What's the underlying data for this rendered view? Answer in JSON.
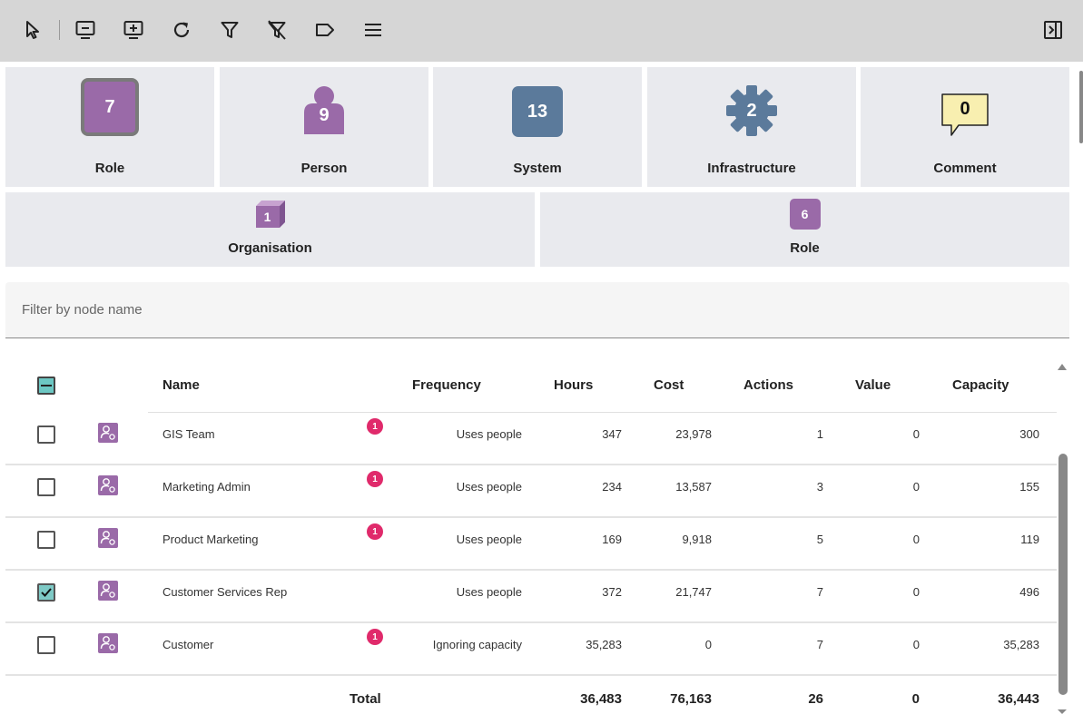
{
  "toolbar": {
    "icons": [
      "pointer-icon",
      "remove-screen-icon",
      "add-screen-icon",
      "refresh-icon",
      "filter-icon",
      "clear-filter-icon",
      "label-icon",
      "menu-icon",
      "side-panel-icon"
    ]
  },
  "tiles": {
    "row1": [
      {
        "label": "Role",
        "count": "7"
      },
      {
        "label": "Person",
        "count": "9"
      },
      {
        "label": "System",
        "count": "13"
      },
      {
        "label": "Infrastructure",
        "count": "2"
      },
      {
        "label": "Comment",
        "count": "0"
      }
    ],
    "row2": [
      {
        "label": "Organisation",
        "count": "1"
      },
      {
        "label": "Role",
        "count": "6"
      }
    ]
  },
  "colors": {
    "role": "#9a6aa8",
    "system": "#5b7a9b",
    "comment": "#f8efb0",
    "badge": "#e02a6b",
    "checkbox": "#7ecac6"
  },
  "filter": {
    "placeholder": "Filter by node name"
  },
  "table": {
    "headers": {
      "name": "Name",
      "frequency": "Frequency",
      "hours": "Hours",
      "cost": "Cost",
      "actions": "Actions",
      "value": "Value",
      "capacity": "Capacity"
    },
    "rows": [
      {
        "name": "GIS Team",
        "badge": "1",
        "frequency": "Uses people",
        "hours": "347",
        "cost": "23,978",
        "actions": "1",
        "value": "0",
        "capacity": "300",
        "checked": false
      },
      {
        "name": "Marketing Admin",
        "badge": "1",
        "frequency": "Uses people",
        "hours": "234",
        "cost": "13,587",
        "actions": "3",
        "value": "0",
        "capacity": "155",
        "checked": false
      },
      {
        "name": "Product Marketing",
        "badge": "1",
        "frequency": "Uses people",
        "hours": "169",
        "cost": "9,918",
        "actions": "5",
        "value": "0",
        "capacity": "119",
        "checked": false
      },
      {
        "name": "Customer Services Rep",
        "badge": "",
        "frequency": "Uses people",
        "hours": "372",
        "cost": "21,747",
        "actions": "7",
        "value": "0",
        "capacity": "496",
        "checked": true
      },
      {
        "name": "Customer",
        "badge": "1",
        "frequency": "Ignoring capacity",
        "hours": "35,283",
        "cost": "0",
        "actions": "7",
        "value": "0",
        "capacity": "35,283",
        "checked": false
      }
    ],
    "total": {
      "label": "Total",
      "hours": "36,483",
      "cost": "76,163",
      "actions": "26",
      "value": "0",
      "capacity": "36,443"
    }
  }
}
